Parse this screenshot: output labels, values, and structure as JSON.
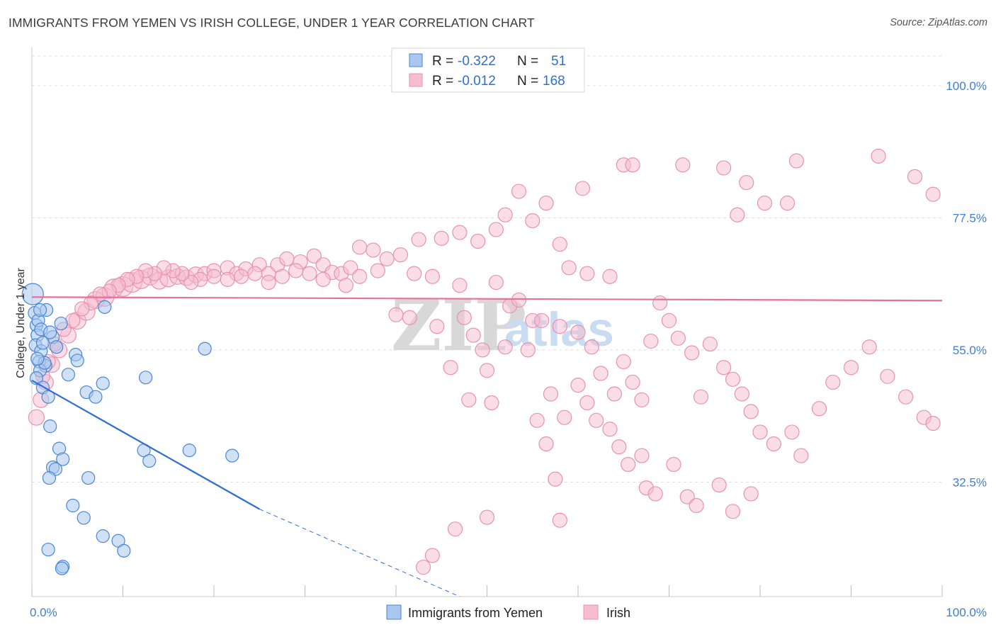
{
  "header": {
    "title": "IMMIGRANTS FROM YEMEN VS IRISH COLLEGE, UNDER 1 YEAR CORRELATION CHART",
    "source": "Source: ZipAtlas.com"
  },
  "watermark": {
    "zip": "ZIP",
    "atlas": "atlas"
  },
  "legend": {
    "series": [
      {
        "r_label": "R =",
        "r_value": "-0.322",
        "n_label": "N =",
        "n_value": "51"
      },
      {
        "r_label": "R =",
        "r_value": "-0.012",
        "n_label": "N =",
        "n_value": "168"
      }
    ]
  },
  "colors": {
    "blue_fill": "#aac8ee",
    "blue_stroke": "#4a86d4",
    "blue_line": "#2e6fd3",
    "pink_fill": "#f6bcd0",
    "pink_stroke": "#e693b0",
    "pink_line": "#e8709a",
    "tick_text": "#3f7fd4",
    "grid": "#dddddd"
  },
  "chart_data": {
    "type": "scatter",
    "title": "IMMIGRANTS FROM YEMEN VS IRISH COLLEGE, UNDER 1 YEAR CORRELATION CHART",
    "xlabel": "",
    "ylabel": "College, Under 1 year",
    "xlim": [
      0,
      100
    ],
    "ylim": [
      13.0,
      106.5
    ],
    "x_tick_labels": [
      "0.0%",
      "100.0%"
    ],
    "y_ticks": [
      32.5,
      55.0,
      77.5,
      100.0
    ],
    "y_tick_labels": [
      "32.5%",
      "55.0%",
      "77.5%",
      "100.0%"
    ],
    "grid": true,
    "legend_position": "top-center",
    "series": [
      {
        "name": "Immigrants from Yemen",
        "color": "#aac8ee",
        "trend": {
          "x": [
            0,
            25
          ],
          "y": [
            49.8,
            27.9
          ],
          "dashed_to": [
            47,
            13.0
          ]
        },
        "points": [
          [
            0.1,
            64.5,
            15
          ],
          [
            0.3,
            61.3,
            9
          ],
          [
            0.5,
            59.2,
            9
          ],
          [
            0.6,
            57.5,
            9
          ],
          [
            0.4,
            55.8,
            9
          ],
          [
            1.0,
            54.8,
            9
          ],
          [
            0.8,
            53.0,
            9
          ],
          [
            1.5,
            52.3,
            9
          ],
          [
            0.9,
            51.5,
            9
          ],
          [
            0.5,
            50.2,
            9
          ],
          [
            1.2,
            48.6,
            9
          ],
          [
            1.8,
            47.0,
            9
          ],
          [
            0.7,
            60.0,
            9
          ],
          [
            1.6,
            61.8,
            9
          ],
          [
            2.3,
            57.2,
            9
          ],
          [
            2.7,
            55.5,
            9
          ],
          [
            3.2,
            59.5,
            9
          ],
          [
            4.8,
            54.2,
            9
          ],
          [
            5.0,
            53.2,
            9
          ],
          [
            4.0,
            50.8,
            9
          ],
          [
            8.0,
            62.3,
            9
          ],
          [
            7.8,
            49.3,
            9
          ],
          [
            6.0,
            47.8,
            9
          ],
          [
            7.0,
            47.0,
            9
          ],
          [
            12.5,
            50.3,
            9
          ],
          [
            19.0,
            55.2,
            9
          ],
          [
            2.0,
            42.0,
            9
          ],
          [
            3.0,
            38.2,
            9
          ],
          [
            3.4,
            36.4,
            9
          ],
          [
            2.3,
            35.0,
            9
          ],
          [
            2.6,
            34.7,
            9
          ],
          [
            1.9,
            33.2,
            9
          ],
          [
            6.2,
            33.2,
            9
          ],
          [
            12.3,
            37.9,
            9
          ],
          [
            12.9,
            36.1,
            9
          ],
          [
            17.3,
            37.9,
            9
          ],
          [
            22.0,
            37.0,
            9
          ],
          [
            4.5,
            28.5,
            9
          ],
          [
            5.7,
            26.4,
            9
          ],
          [
            7.8,
            23.3,
            9
          ],
          [
            9.5,
            22.5,
            9
          ],
          [
            10.1,
            20.8,
            9
          ],
          [
            1.8,
            21.0,
            9
          ],
          [
            3.4,
            18.1,
            9
          ],
          [
            3.3,
            17.8,
            9
          ],
          [
            1.0,
            58.5,
            9
          ],
          [
            2.0,
            58.0,
            9
          ],
          [
            1.2,
            56.2,
            9
          ],
          [
            0.9,
            61.8,
            9
          ],
          [
            1.4,
            52.8,
            9
          ],
          [
            0.6,
            53.5,
            9
          ]
        ]
      },
      {
        "name": "Irish",
        "color": "#f6bcd0",
        "trend": {
          "x": [
            0,
            100
          ],
          "y": [
            64.0,
            63.4
          ]
        },
        "points": [
          [
            0.5,
            43.5,
            11
          ],
          [
            1.0,
            46.5,
            11
          ],
          [
            1.5,
            49.5,
            11
          ],
          [
            2.2,
            52.5,
            11
          ],
          [
            3.0,
            55.0,
            11
          ],
          [
            4.0,
            57.5,
            11
          ],
          [
            5.0,
            60.0,
            12
          ],
          [
            6.0,
            61.5,
            12
          ],
          [
            7.0,
            63.5,
            12
          ],
          [
            8.0,
            64.0,
            13
          ],
          [
            9.0,
            65.5,
            13
          ],
          [
            10.0,
            65.8,
            14
          ],
          [
            11.0,
            66.5,
            14
          ],
          [
            12.0,
            67.0,
            13
          ],
          [
            13.0,
            67.5,
            12
          ],
          [
            14.0,
            66.8,
            12
          ],
          [
            15.0,
            67.2,
            12
          ],
          [
            16.0,
            67.5,
            11
          ],
          [
            17.0,
            67.3,
            11
          ],
          [
            18.0,
            67.8,
            11
          ],
          [
            19.0,
            68.0,
            10
          ],
          [
            20.0,
            68.5,
            10
          ],
          [
            21.5,
            69.0,
            10
          ],
          [
            22.5,
            68.0,
            10
          ],
          [
            23.5,
            68.8,
            10
          ],
          [
            25.0,
            69.5,
            10
          ],
          [
            26.0,
            68.0,
            10
          ],
          [
            27.0,
            69.5,
            10
          ],
          [
            28.0,
            70.5,
            10
          ],
          [
            29.5,
            70.0,
            10
          ],
          [
            31.0,
            71.0,
            10
          ],
          [
            32.0,
            69.5,
            10
          ],
          [
            33.0,
            68.2,
            10
          ],
          [
            34.0,
            68.0,
            10
          ],
          [
            35.0,
            69.0,
            10
          ],
          [
            36.0,
            72.5,
            10
          ],
          [
            37.5,
            72.0,
            10
          ],
          [
            39.0,
            70.5,
            10
          ],
          [
            40.5,
            71.2,
            10
          ],
          [
            42.5,
            73.8,
            10
          ],
          [
            45.0,
            74.0,
            10
          ],
          [
            47.0,
            75.0,
            10
          ],
          [
            49.0,
            73.5,
            10
          ],
          [
            51.0,
            75.5,
            10
          ],
          [
            52.0,
            78.0,
            10
          ],
          [
            53.5,
            82.0,
            10
          ],
          [
            55.0,
            77.0,
            10
          ],
          [
            56.5,
            80.0,
            10
          ],
          [
            58.0,
            73.0,
            10
          ],
          [
            60.5,
            82.5,
            10
          ],
          [
            65.0,
            86.5,
            10
          ],
          [
            66.0,
            86.5,
            10
          ],
          [
            71.5,
            86.5,
            10
          ],
          [
            76.0,
            86.0,
            10
          ],
          [
            78.5,
            83.5,
            10
          ],
          [
            84.0,
            87.2,
            10
          ],
          [
            93.0,
            88.0,
            10
          ],
          [
            97.0,
            84.5,
            10
          ],
          [
            99.0,
            81.5,
            10
          ],
          [
            83.0,
            80.0,
            10
          ],
          [
            80.5,
            80.0,
            10
          ],
          [
            77.5,
            78.0,
            10
          ],
          [
            59.0,
            69.0,
            10
          ],
          [
            61.0,
            68.0,
            10
          ],
          [
            63.5,
            67.5,
            10
          ],
          [
            51.0,
            66.5,
            10
          ],
          [
            47.0,
            66.0,
            10
          ],
          [
            44.0,
            67.5,
            10
          ],
          [
            42.0,
            68.0,
            10
          ],
          [
            38.0,
            68.5,
            10
          ],
          [
            36.0,
            67.5,
            10
          ],
          [
            34.5,
            66.0,
            10
          ],
          [
            32.0,
            67.0,
            10
          ],
          [
            30.5,
            68.0,
            10
          ],
          [
            29.0,
            68.5,
            10
          ],
          [
            27.5,
            67.5,
            10
          ],
          [
            26.0,
            66.5,
            10
          ],
          [
            24.5,
            68.0,
            10
          ],
          [
            23.0,
            67.5,
            10
          ],
          [
            21.5,
            67.0,
            10
          ],
          [
            20.0,
            67.5,
            10
          ],
          [
            18.5,
            67.0,
            10
          ],
          [
            17.5,
            66.5,
            10
          ],
          [
            16.5,
            68.0,
            10
          ],
          [
            15.5,
            68.5,
            10
          ],
          [
            14.5,
            69.0,
            10
          ],
          [
            13.5,
            68.0,
            10
          ],
          [
            12.5,
            68.5,
            10
          ],
          [
            11.5,
            67.5,
            10
          ],
          [
            10.5,
            67.0,
            10
          ],
          [
            9.5,
            66.0,
            10
          ],
          [
            8.5,
            65.0,
            10
          ],
          [
            7.5,
            64.5,
            10
          ],
          [
            6.5,
            63.0,
            10
          ],
          [
            5.5,
            62.0,
            10
          ],
          [
            4.5,
            60.0,
            10
          ],
          [
            3.5,
            58.5,
            10
          ],
          [
            2.5,
            56.0,
            10
          ],
          [
            1.8,
            53.0,
            10
          ],
          [
            1.2,
            50.5,
            10
          ],
          [
            40.0,
            61.0,
            10
          ],
          [
            41.5,
            60.5,
            10
          ],
          [
            44.5,
            59.0,
            10
          ],
          [
            47.5,
            60.5,
            10
          ],
          [
            48.5,
            57.5,
            10
          ],
          [
            49.5,
            55.0,
            10
          ],
          [
            50.0,
            51.5,
            10
          ],
          [
            52.5,
            62.5,
            10
          ],
          [
            53.5,
            63.5,
            10
          ],
          [
            55.0,
            60.0,
            10
          ],
          [
            56.0,
            60.0,
            10
          ],
          [
            58.0,
            59.0,
            10
          ],
          [
            60.0,
            58.0,
            10
          ],
          [
            61.5,
            55.5,
            10
          ],
          [
            62.5,
            51.0,
            10
          ],
          [
            64.0,
            47.5,
            10
          ],
          [
            65.0,
            53.0,
            10
          ],
          [
            66.0,
            49.5,
            10
          ],
          [
            67.0,
            46.5,
            10
          ],
          [
            68.0,
            56.5,
            10
          ],
          [
            69.0,
            63.0,
            10
          ],
          [
            70.0,
            60.0,
            10
          ],
          [
            71.0,
            57.0,
            10
          ],
          [
            72.5,
            54.5,
            10
          ],
          [
            73.5,
            47.0,
            10
          ],
          [
            74.5,
            56.0,
            10
          ],
          [
            76.0,
            52.0,
            10
          ],
          [
            77.0,
            50.0,
            10
          ],
          [
            78.0,
            47.5,
            10
          ],
          [
            79.0,
            44.5,
            10
          ],
          [
            80.0,
            41.0,
            10
          ],
          [
            81.5,
            39.0,
            10
          ],
          [
            83.5,
            41.0,
            10
          ],
          [
            84.5,
            37.0,
            10
          ],
          [
            86.5,
            45.0,
            10
          ],
          [
            88.0,
            49.5,
            10
          ],
          [
            90.0,
            52.0,
            10
          ],
          [
            92.0,
            55.5,
            10
          ],
          [
            94.0,
            50.5,
            10
          ],
          [
            96.0,
            47.0,
            10
          ],
          [
            98.0,
            43.5,
            10
          ],
          [
            99.0,
            42.5,
            10
          ],
          [
            54.5,
            55.0,
            10
          ],
          [
            57.0,
            47.5,
            10
          ],
          [
            58.5,
            43.5,
            10
          ],
          [
            60.0,
            49.0,
            10
          ],
          [
            61.0,
            46.0,
            10
          ],
          [
            62.0,
            43.0,
            10
          ],
          [
            63.5,
            41.5,
            10
          ],
          [
            64.5,
            38.5,
            10
          ],
          [
            65.5,
            35.5,
            10
          ],
          [
            67.0,
            37.0,
            10
          ],
          [
            67.5,
            31.5,
            10
          ],
          [
            68.5,
            30.5,
            10
          ],
          [
            70.5,
            35.5,
            10
          ],
          [
            72.0,
            30.0,
            10
          ],
          [
            73.0,
            28.5,
            10
          ],
          [
            75.5,
            32.0,
            10
          ],
          [
            77.0,
            27.5,
            10
          ],
          [
            79.0,
            30.5,
            10
          ],
          [
            46.0,
            52.0,
            10
          ],
          [
            48.0,
            46.5,
            10
          ],
          [
            50.5,
            46.0,
            10
          ],
          [
            52.0,
            55.5,
            10
          ],
          [
            55.5,
            43.0,
            10
          ],
          [
            56.5,
            39.0,
            10
          ],
          [
            57.5,
            33.0,
            10
          ],
          [
            58.0,
            26.0,
            10
          ],
          [
            50.0,
            26.5,
            10
          ],
          [
            46.5,
            24.5,
            10
          ],
          [
            44.0,
            20.0,
            10
          ],
          [
            43.0,
            18.0,
            10
          ]
        ]
      }
    ]
  },
  "bottom_legend": {
    "items": [
      "Immigrants from Yemen",
      "Irish"
    ]
  }
}
